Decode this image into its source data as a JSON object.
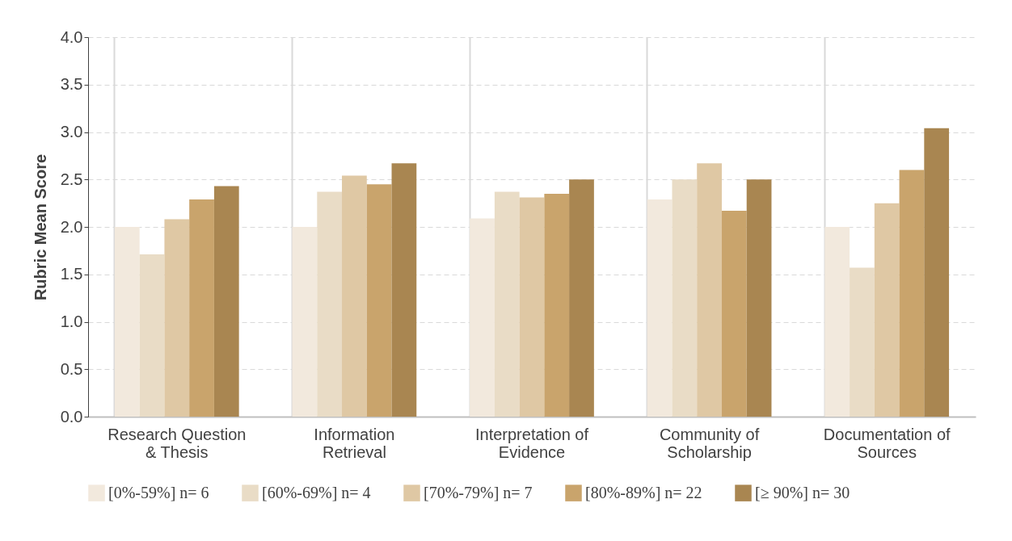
{
  "chart_data": {
    "type": "bar",
    "ylabel": "Rubric Mean Score",
    "categories": [
      "Research Question & Thesis",
      "Information Retrieval",
      "Interpretation of Evidence",
      "Community of Scholarship",
      "Documentation of Sources"
    ],
    "series": [
      {
        "name": "[0%-59%] n= 6",
        "color": "#f2e9dd",
        "values": [
          2.0,
          2.0,
          2.09,
          2.29,
          2.0
        ]
      },
      {
        "name": "[60%-69%] n= 4",
        "color": "#e9dcc6",
        "values": [
          1.71,
          2.37,
          2.37,
          2.5,
          1.57
        ]
      },
      {
        "name": "[70%-79%] n= 7",
        "color": "#dfc8a4",
        "values": [
          2.08,
          2.54,
          2.31,
          2.67,
          2.25
        ]
      },
      {
        "name": "[80%-89%] n= 22",
        "color": "#c9a46c",
        "values": [
          2.29,
          2.45,
          2.35,
          2.17,
          2.6
        ]
      },
      {
        "name": "[≥ 90%] n= 30",
        "color": "#a98651",
        "values": [
          2.43,
          2.67,
          2.5,
          2.5,
          3.04
        ]
      }
    ],
    "ylim": [
      0,
      4
    ],
    "yticks": [
      {
        "value": 0,
        "label": "0.0"
      },
      0.5,
      {
        "value": 1,
        "label": "1.0"
      },
      1.5,
      {
        "value": 2,
        "label": "2.0"
      },
      2.5,
      {
        "value": 3,
        "label": "3.0"
      },
      3.5,
      {
        "value": 4,
        "label": "4.0"
      }
    ],
    "grid": true,
    "legend": "bottom"
  }
}
